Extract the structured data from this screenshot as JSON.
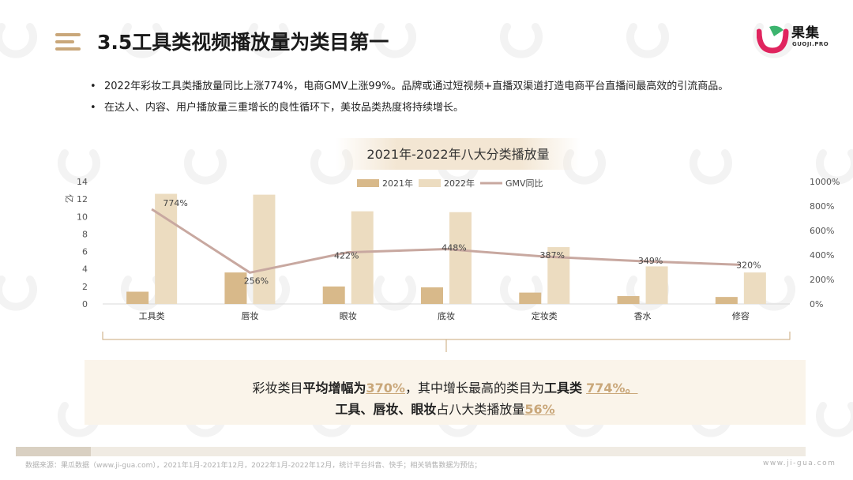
{
  "header": {
    "title": "3.5工具类视频播放量为类目第一",
    "logo_name": "果集",
    "logo_sub": "GUOJI.PRO"
  },
  "bullets": [
    "2022年彩妆工具类播放量同比上涨774%，电商GMV上涨99%。品牌或通过短视频+直播双渠道打造电商平台直播间最高效的引流商品。",
    "在达人、内容、用户播放量三重增长的良性循环下，美妆品类热度将持续增长。"
  ],
  "chart_data": {
    "type": "bar",
    "title": "2021年-2022年八大分类播放量",
    "categories": [
      "工具类",
      "唇妆",
      "眼妆",
      "底妆",
      "定妆类",
      "香水",
      "修容"
    ],
    "series": [
      {
        "name": "2021年",
        "kind": "bar",
        "values": [
          1.4,
          3.6,
          2.0,
          1.9,
          1.3,
          0.9,
          0.8
        ]
      },
      {
        "name": "2022年",
        "kind": "bar",
        "values": [
          12.6,
          12.5,
          10.6,
          10.5,
          6.5,
          4.3,
          3.6
        ]
      },
      {
        "name": "GMV同比",
        "kind": "line",
        "axis": "right",
        "values": [
          774,
          256,
          422,
          448,
          387,
          349,
          320
        ],
        "labels": [
          "774%",
          "256%",
          "422%",
          "448%",
          "387%",
          "349%",
          "320%"
        ]
      }
    ],
    "ylabel": "亿",
    "ylim": [
      0,
      14
    ],
    "yticks": [
      "0",
      "2",
      "4",
      "6",
      "8",
      "10",
      "12",
      "14"
    ],
    "y2lim": [
      0,
      1000
    ],
    "y2ticks": [
      "0%",
      "200%",
      "400%",
      "600%",
      "800%",
      "1000%"
    ],
    "legend_position": "top",
    "grid": false,
    "colors": {
      "2021年": "#d8b98a",
      "2022年": "#ecdcc0",
      "GMV同比": "#c8a8a0"
    }
  },
  "summary": {
    "line1_prefix": "彩妆类目",
    "line1_bold": "平均增幅为",
    "line1_value": "370%",
    "line1_mid": "，其中增长最高的类目为",
    "line1_bold2": "工具类",
    "line1_value2": "774%。",
    "line2_bold": "工具、唇妆、眼妆",
    "line2_mid": "占八大类播放量",
    "line2_value": "56%"
  },
  "footer": {
    "source": "数据来源：果瓜数据（www.ji-gua.com），2021年1月-2021年12月，2022年1月-2022年12月，统计平台抖音、快手；相关销售数据为预估；",
    "url": "www.ji-gua.com"
  },
  "colors": {
    "accent": "#c9a77a",
    "logo_red": "#e0245e",
    "logo_green": "#3cb46e"
  }
}
